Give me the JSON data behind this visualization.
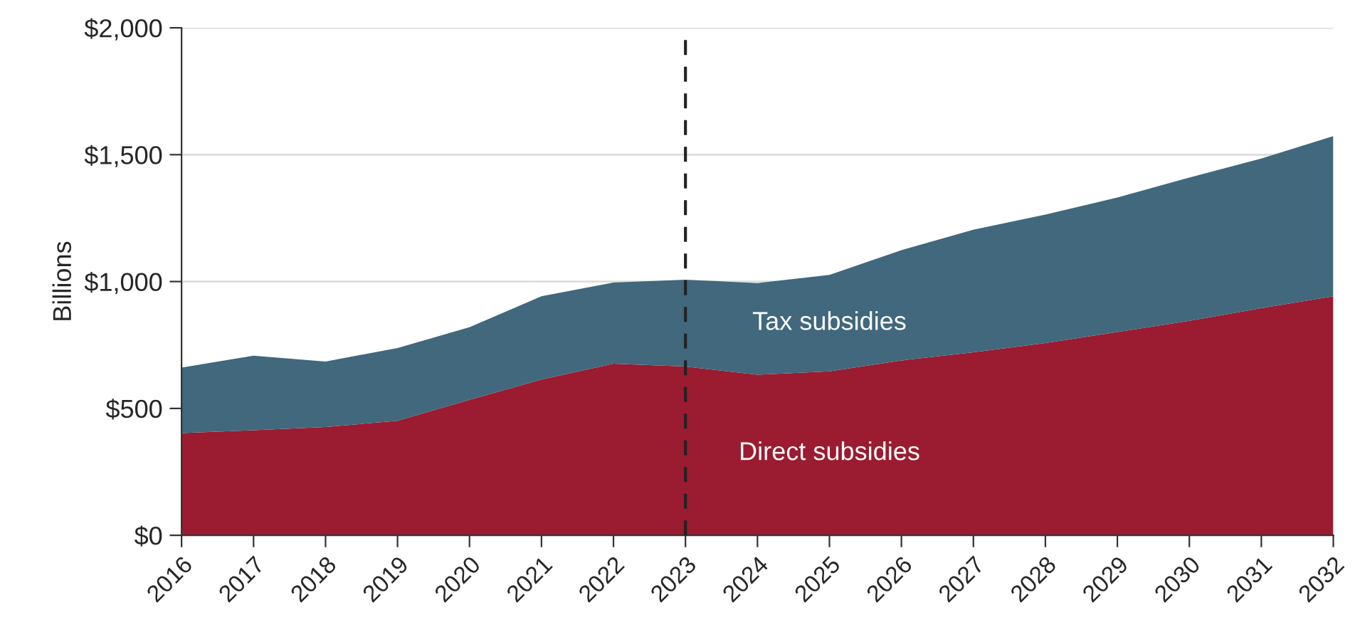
{
  "chart_data": {
    "type": "area",
    "stacked": true,
    "ylabel": "Billions",
    "categories": [
      "2016",
      "2017",
      "2018",
      "2019",
      "2020",
      "2021",
      "2022",
      "2023",
      "2024",
      "2025",
      "2026",
      "2027",
      "2028",
      "2029",
      "2030",
      "2031",
      "2032"
    ],
    "series": [
      {
        "name": "Direct subsidies",
        "color": "#9b1b30",
        "values": [
          403,
          414,
          427,
          451,
          534,
          614,
          676,
          665,
          633,
          646,
          689,
          721,
          758,
          801,
          845,
          895,
          942
        ]
      },
      {
        "name": "Tax subsidies",
        "color": "#41687c",
        "values": [
          258,
          294,
          258,
          287,
          286,
          328,
          320,
          342,
          361,
          380,
          435,
          483,
          506,
          530,
          565,
          590,
          631
        ]
      }
    ],
    "ylim": [
      0,
      2000
    ],
    "yticks": [
      {
        "value": 0,
        "label": "$0"
      },
      {
        "value": 500,
        "label": "$500"
      },
      {
        "value": 1000,
        "label": "$1,000"
      },
      {
        "value": 1500,
        "label": "$1,500"
      },
      {
        "value": 2000,
        "label": "$2,000"
      }
    ],
    "grid": "y",
    "ref_lines": [
      {
        "axis": "x",
        "value": "2023",
        "color": "#222222",
        "line_style": "dashed"
      }
    ]
  }
}
